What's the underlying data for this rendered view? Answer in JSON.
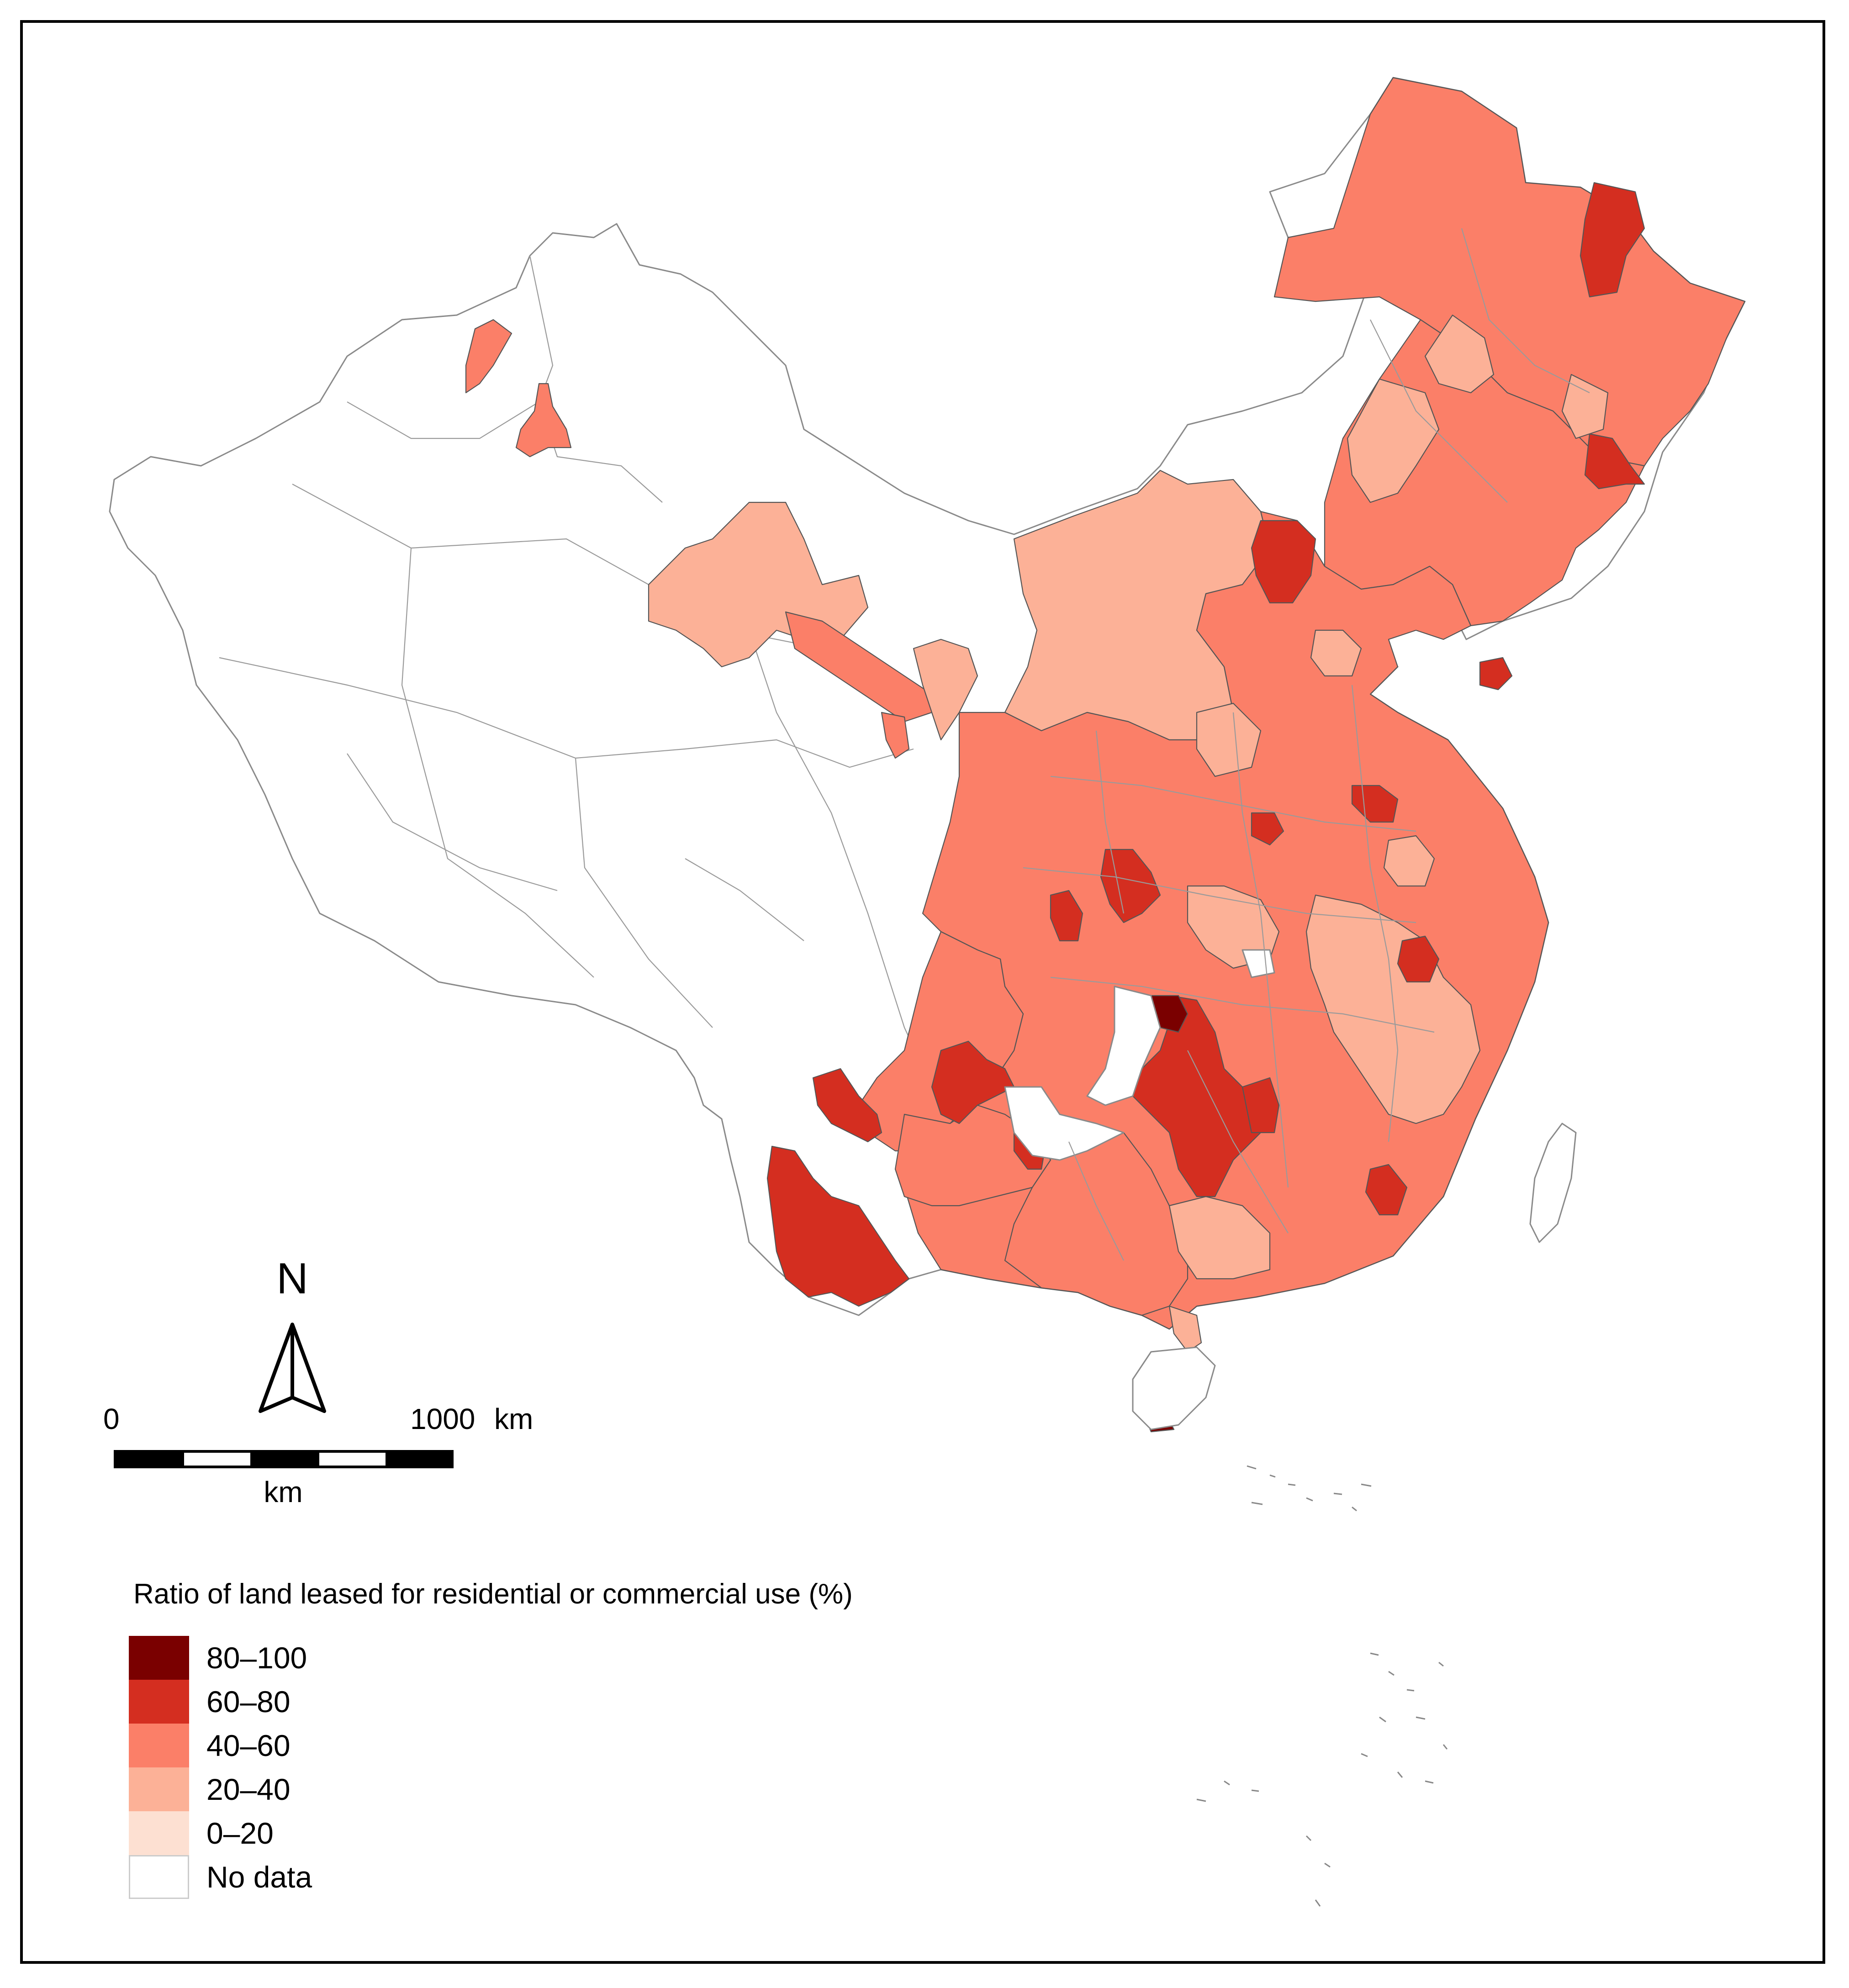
{
  "map": {
    "north_label": "N",
    "scale_bar": {
      "start_label": "0",
      "end_label": "1000",
      "unit_label_right": "km",
      "unit_label_below": "km"
    },
    "legend": {
      "title": "Ratio of land leased for residential or commercial use (%)",
      "items": [
        {
          "label": "80–100",
          "color": "#7a0000"
        },
        {
          "label": "60–80",
          "color": "#d42e20"
        },
        {
          "label": "40–60",
          "color": "#fb7f68"
        },
        {
          "label": "20–40",
          "color": "#fcb197"
        },
        {
          "label": "0–20",
          "color": "#fde0d2"
        },
        {
          "label": "No data",
          "color": "#ffffff"
        }
      ]
    },
    "colors": {
      "class_80_100": "#7a0000",
      "class_60_80": "#d42e20",
      "class_40_60": "#fb7f68",
      "class_20_40": "#fcb197",
      "class_0_20": "#fde0d2",
      "no_data": "#ffffff",
      "border": "#8a8a8a"
    }
  }
}
